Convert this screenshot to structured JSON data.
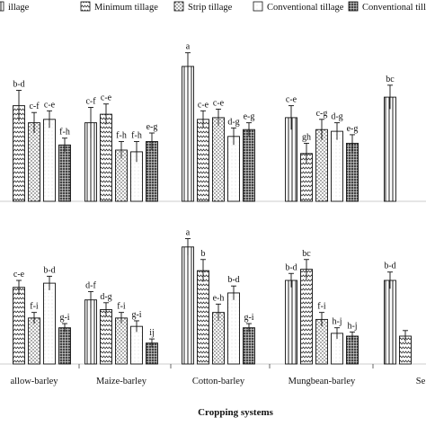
{
  "chart_data": {
    "type": "bar",
    "xlabel": "Cropping systems",
    "legend": {
      "placement": "top",
      "entries": [
        {
          "name": "illage",
          "pattern": "vertical"
        },
        {
          "name": "Minimum tillage",
          "pattern": "wave"
        },
        {
          "name": "Strip tillage",
          "pattern": "dots"
        },
        {
          "name": "Conventional tillage",
          "pattern": "plain"
        },
        {
          "name": "Conventional tillage",
          "pattern": "grid"
        }
      ]
    },
    "panels": [
      {
        "row": "top",
        "ylim": [
          0,
          100
        ],
        "categories": [
          "",
          "",
          "",
          "",
          ""
        ],
        "groups": [
          {
            "values": [
              null,
              56,
              46,
              48,
              33
            ],
            "errors": [
              null,
              9,
              6,
              5,
              4
            ],
            "letters": [
              "",
              "b-d",
              "c-f",
              "c-e",
              "f-h"
            ]
          },
          {
            "values": [
              46,
              51,
              30,
              29,
              35
            ],
            "errors": [
              9,
              6,
              5,
              6,
              5
            ],
            "letters": [
              "c-f",
              "c-e",
              "f-h",
              "f-h",
              "e-g"
            ]
          },
          {
            "values": [
              79,
              48,
              49,
              38,
              42
            ],
            "errors": [
              8,
              5,
              5,
              5,
              4
            ],
            "letters": [
              "a",
              "c-e",
              "c-e",
              "d-g",
              "e-g"
            ]
          },
          {
            "values": [
              49,
              28,
              42,
              41,
              34
            ],
            "errors": [
              7,
              6,
              6,
              5,
              5
            ],
            "letters": [
              "c-e",
              "gh",
              "c-g",
              "d-g",
              "e-g"
            ]
          },
          {
            "values": [
              61,
              null,
              null,
              null,
              null
            ],
            "errors": [
              7,
              null,
              null,
              null,
              null
            ],
            "letters": [
              "bc",
              "",
              "",
              "",
              ""
            ]
          }
        ]
      },
      {
        "row": "bottom",
        "ylim": [
          0,
          100
        ],
        "categories": [
          "allow-barley",
          "Maize-barley",
          "Cotton-barley",
          "Mungbean-barley",
          "Se"
        ],
        "groups": [
          {
            "values": [
              null,
              55,
              33,
              58,
              26
            ],
            "errors": [
              null,
              5,
              4,
              5,
              3
            ],
            "letters": [
              "",
              "c-e",
              "f-i",
              "b-d",
              "g-i"
            ]
          },
          {
            "values": [
              46,
              39,
              33,
              27,
              15
            ],
            "errors": [
              6,
              5,
              4,
              4,
              3
            ],
            "letters": [
              "d-f",
              "d-g",
              "f-i",
              "g-i",
              "ij"
            ]
          },
          {
            "values": [
              84,
              67,
              37,
              51,
              26
            ],
            "errors": [
              6,
              8,
              6,
              5,
              3
            ],
            "letters": [
              "a",
              "b",
              "e-h",
              "b-d",
              "g-i"
            ]
          },
          {
            "values": [
              60,
              68,
              32,
              22,
              20
            ],
            "errors": [
              5,
              7,
              5,
              4,
              3
            ],
            "letters": [
              "b-d",
              "bc",
              "f-i",
              "h-j",
              "h-j"
            ]
          },
          {
            "values": [
              60,
              20,
              null,
              null,
              null
            ],
            "errors": [
              6,
              4,
              null,
              null,
              null
            ],
            "letters": [
              "b-d",
              "",
              "",
              "",
              ""
            ]
          }
        ]
      }
    ]
  }
}
